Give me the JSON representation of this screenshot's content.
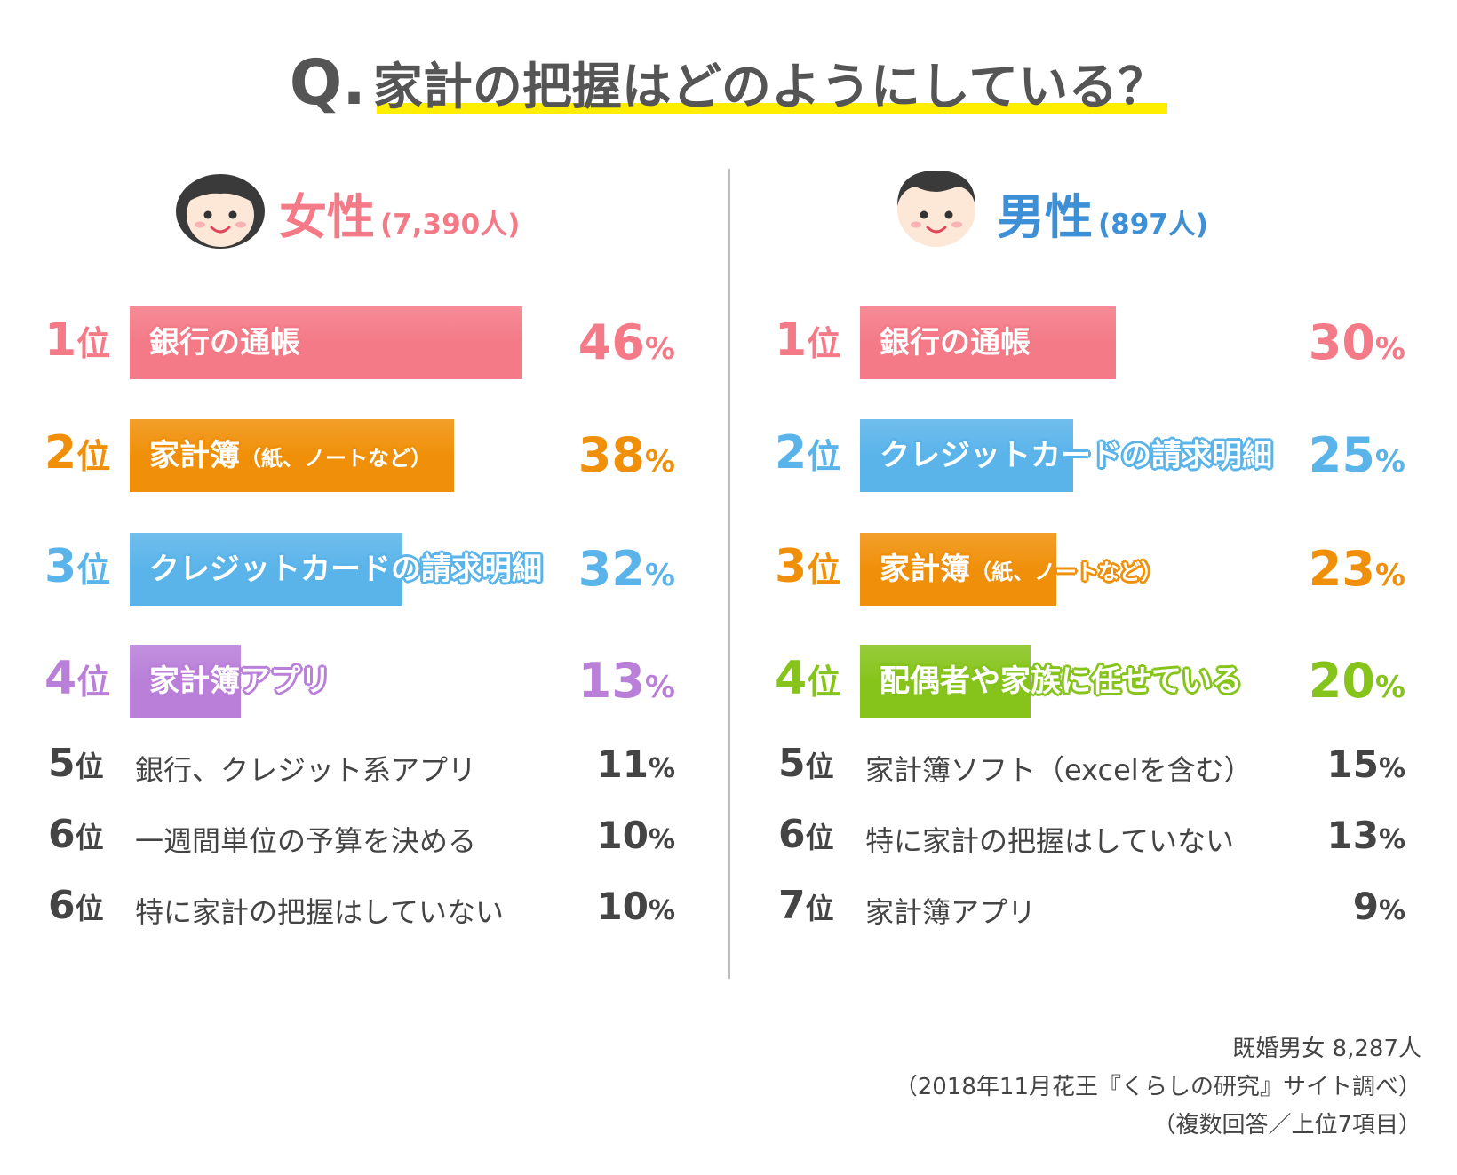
{
  "title": {
    "q": "Q",
    "dot": ".",
    "text": "家計の把握はどのようにしている？"
  },
  "colors": {
    "pink": "#f47a87",
    "orange": "#f0900a",
    "blue": "#5ab4ea",
    "purple": "#b97fd9",
    "green": "#86c41c",
    "text_dark": "#444444",
    "title_underline": "#ffee00",
    "divider": "#bdbdbd"
  },
  "women": {
    "name": "女性",
    "count": "(7,390人)",
    "name_color": "#f47a87",
    "count_color": "#f47a87",
    "avatar": "woman-face-icon",
    "top": [
      {
        "rank": "1",
        "unit": "位",
        "label": "銀行の通帳",
        "label_sub": "",
        "value": 46,
        "unit_pct": "%",
        "color": "#f47a87"
      },
      {
        "rank": "2",
        "unit": "位",
        "label": "家計簿",
        "label_sub": "（紙、ノートなど）",
        "value": 38,
        "unit_pct": "%",
        "color": "#f0900a"
      },
      {
        "rank": "3",
        "unit": "位",
        "label": "クレジットカードの請求明細",
        "label_sub": "",
        "value": 32,
        "unit_pct": "%",
        "color": "#5ab4ea"
      },
      {
        "rank": "4",
        "unit": "位",
        "label": "家計簿アプリ",
        "label_sub": "",
        "value": 13,
        "unit_pct": "%",
        "color": "#b97fd9"
      }
    ],
    "rest": [
      {
        "rank": "5",
        "unit": "位",
        "label": "銀行、クレジット系アプリ",
        "value": 11,
        "unit_pct": "%"
      },
      {
        "rank": "6",
        "unit": "位",
        "label": "一週間単位の予算を決める",
        "value": 10,
        "unit_pct": "%"
      },
      {
        "rank": "6",
        "unit": "位",
        "label": "特に家計の把握はしていない",
        "value": 10,
        "unit_pct": "%"
      }
    ]
  },
  "men": {
    "name": "男性",
    "count": "(897人)",
    "name_color": "#3d8fd6",
    "count_color": "#3d8fd6",
    "avatar": "man-face-icon",
    "top": [
      {
        "rank": "1",
        "unit": "位",
        "label": "銀行の通帳",
        "label_sub": "",
        "value": 30,
        "unit_pct": "%",
        "color": "#f47a87"
      },
      {
        "rank": "2",
        "unit": "位",
        "label": "クレジットカードの請求明細",
        "label_sub": "",
        "value": 25,
        "unit_pct": "%",
        "color": "#5ab4ea"
      },
      {
        "rank": "3",
        "unit": "位",
        "label": "家計簿",
        "label_sub": "（紙、ノートなど）",
        "value": 23,
        "unit_pct": "%",
        "color": "#f0900a"
      },
      {
        "rank": "4",
        "unit": "位",
        "label": "配偶者や家族に任せている",
        "label_sub": "",
        "value": 20,
        "unit_pct": "%",
        "color": "#86c41c"
      }
    ],
    "rest": [
      {
        "rank": "5",
        "unit": "位",
        "label": "家計簿ソフト（excelを含む）",
        "value": 15,
        "unit_pct": "%"
      },
      {
        "rank": "6",
        "unit": "位",
        "label": "特に家計の把握はしていない",
        "value": 13,
        "unit_pct": "%"
      },
      {
        "rank": "7",
        "unit": "位",
        "label": "家計簿アプリ",
        "value": 9,
        "unit_pct": "%"
      }
    ]
  },
  "footnote": {
    "line1": "既婚男女 8,287人",
    "line2": "（2018年11月花王『くらしの研究』サイト調べ）",
    "line3": "（複数回答／上位7項目）"
  },
  "chart_data": [
    {
      "type": "bar",
      "title": "女性",
      "subtitle": "(7,390人)",
      "categories": [
        "銀行の通帳",
        "家計簿（紙、ノートなど）",
        "クレジットカードの請求明細",
        "家計簿アプリ",
        "銀行、クレジット系アプリ",
        "一週間単位の予算を決める",
        "特に家計の把握はしていない"
      ],
      "ranks": [
        "1位",
        "2位",
        "3位",
        "4位",
        "5位",
        "6位",
        "6位"
      ],
      "values": [
        46,
        38,
        32,
        13,
        11,
        10,
        10
      ],
      "unit": "%",
      "orientation": "horizontal",
      "bars_drawn_for": [
        1,
        2,
        3,
        4
      ],
      "grid": false,
      "legend": "none"
    },
    {
      "type": "bar",
      "title": "男性",
      "subtitle": "(897人)",
      "categories": [
        "銀行の通帳",
        "クレジットカードの請求明細",
        "家計簿（紙、ノートなど）",
        "配偶者や家族に任せている",
        "家計簿ソフト（excelを含む）",
        "特に家計の把握はしていない",
        "家計簿アプリ"
      ],
      "ranks": [
        "1位",
        "2位",
        "3位",
        "4位",
        "5位",
        "6位",
        "7位"
      ],
      "values": [
        30,
        25,
        23,
        20,
        15,
        13,
        9
      ],
      "unit": "%",
      "orientation": "horizontal",
      "bars_drawn_for": [
        1,
        2,
        3,
        4
      ],
      "grid": false,
      "legend": "none"
    }
  ]
}
